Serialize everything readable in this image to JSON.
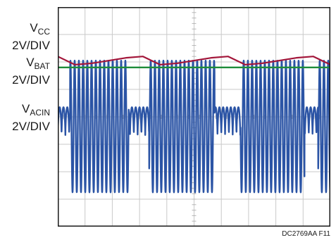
{
  "chart_data": {
    "type": "line",
    "grid": true,
    "grid_divisions": {
      "horizontal": 10,
      "vertical": 8
    },
    "minor_ticks_per_division": 5,
    "channels": [
      {
        "name_main": "V",
        "name_sub": "CC",
        "scale": "2V/DIV",
        "color": "#a3163a",
        "level_div": 6.2,
        "ripple_div": 0.2
      },
      {
        "name_main": "V",
        "name_sub": "BAT",
        "scale": "2V/DIV",
        "color": "#1e8c3a",
        "level_div": 5.8
      },
      {
        "name_main": "V",
        "name_sub": "ACIN",
        "scale": "2V/DIV",
        "color": "#2b54a5",
        "center_div": 4.1
      }
    ],
    "series": [
      {
        "name": "VCC",
        "values": [
          6.2,
          5.9,
          5.95,
          6.05,
          6.15,
          6.2,
          5.9,
          5.95,
          6.05,
          6.15,
          6.2,
          5.9,
          5.95,
          6.05,
          6.15,
          6.2,
          5.9
        ]
      },
      {
        "name": "VBAT",
        "values": [
          5.8,
          5.8,
          5.8,
          5.8,
          5.8,
          5.8,
          5.8,
          5.8,
          5.8,
          5.8,
          5.8,
          5.8,
          5.8,
          5.8,
          5.8,
          5.8,
          5.8
        ]
      },
      {
        "name": "VACIN",
        "segments": [
          {
            "x_start_div": 0.0,
            "x_end_div": 0.45,
            "mode": "low"
          },
          {
            "x_start_div": 0.45,
            "x_end_div": 2.6,
            "mode": "high"
          },
          {
            "x_start_div": 2.6,
            "x_end_div": 3.35,
            "mode": "low"
          },
          {
            "x_start_div": 3.35,
            "x_end_div": 5.75,
            "mode": "high"
          },
          {
            "x_start_div": 5.75,
            "x_end_div": 6.7,
            "mode": "low"
          },
          {
            "x_start_div": 6.7,
            "x_end_div": 9.05,
            "mode": "high"
          },
          {
            "x_start_div": 9.05,
            "x_end_div": 9.55,
            "mode": "low"
          },
          {
            "x_start_div": 9.55,
            "x_end_div": 10.0,
            "mode": "high"
          }
        ],
        "high_min_div": 1.25,
        "high_max_div": 6.05,
        "low_min_div": 3.3,
        "low_max_div": 4.35,
        "period_div": 0.155
      }
    ]
  },
  "figure_id": "DC2769AA F11"
}
